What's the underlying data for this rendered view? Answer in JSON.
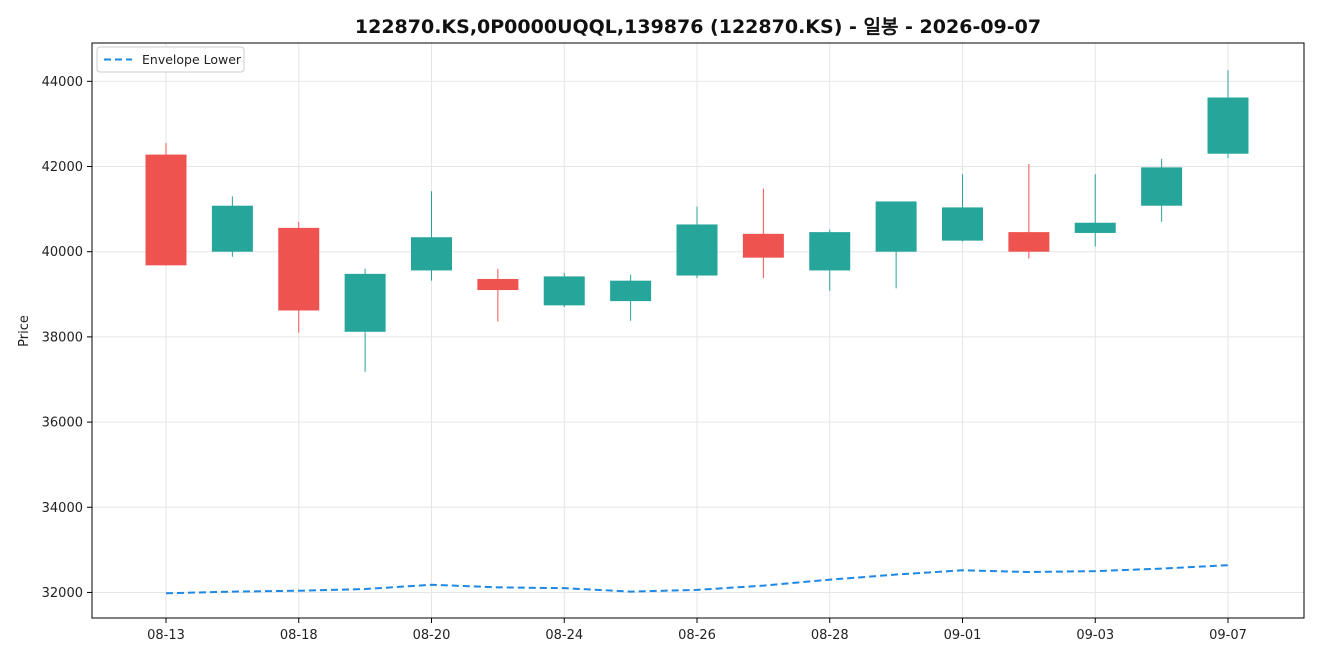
{
  "chart_data": {
    "type": "candlestick",
    "title": "122870.KS,0P0000UQQL,139876 (122870.KS) - 일봉 - 2026-09-07",
    "ylabel": "Price",
    "xlabel": "",
    "ylim": [
      31400,
      44900
    ],
    "yticks": [
      32000,
      34000,
      36000,
      38000,
      40000,
      42000,
      44000
    ],
    "xtick_labels": [
      "08-13",
      "08-18",
      "08-20",
      "08-24",
      "08-26",
      "08-28",
      "09-01",
      "09-03",
      "09-07"
    ],
    "xtick_positions": [
      0,
      2,
      4,
      6,
      8,
      10,
      12,
      14,
      16
    ],
    "grid": true,
    "legend": {
      "position": "top-left",
      "entries": [
        "Envelope Lower"
      ]
    },
    "colors": {
      "up": "#26a69a",
      "down": "#ef5350",
      "envelope": "#1e88e5"
    },
    "candles": [
      {
        "open": 42280,
        "high": 42550,
        "low": 39680,
        "close": 39680
      },
      {
        "open": 40000,
        "high": 41300,
        "low": 39880,
        "close": 41080
      },
      {
        "open": 40560,
        "high": 40700,
        "low": 38100,
        "close": 38620
      },
      {
        "open": 38120,
        "high": 39600,
        "low": 37180,
        "close": 39480
      },
      {
        "open": 39560,
        "high": 41420,
        "low": 39320,
        "close": 40340
      },
      {
        "open": 39360,
        "high": 39600,
        "low": 38360,
        "close": 39100
      },
      {
        "open": 38740,
        "high": 39500,
        "low": 38700,
        "close": 39420
      },
      {
        "open": 38840,
        "high": 39460,
        "low": 38380,
        "close": 39320
      },
      {
        "open": 39440,
        "high": 41060,
        "low": 39380,
        "close": 40640
      },
      {
        "open": 40420,
        "high": 41480,
        "low": 39380,
        "close": 39860
      },
      {
        "open": 39560,
        "high": 40520,
        "low": 39080,
        "close": 40460
      },
      {
        "open": 40000,
        "high": 41180,
        "low": 39140,
        "close": 41180
      },
      {
        "open": 40260,
        "high": 41820,
        "low": 40240,
        "close": 41040
      },
      {
        "open": 40460,
        "high": 42060,
        "low": 39840,
        "close": 40000
      },
      {
        "open": 40440,
        "high": 41820,
        "low": 40120,
        "close": 40680
      },
      {
        "open": 41080,
        "high": 42180,
        "low": 40700,
        "close": 41980
      },
      {
        "open": 42300,
        "high": 44260,
        "low": 42200,
        "close": 43620
      }
    ],
    "series": [
      {
        "name": "Envelope Lower",
        "style": "dashed",
        "values": [
          31980,
          32020,
          32040,
          32080,
          32180,
          32120,
          32100,
          32020,
          32060,
          32160,
          32300,
          32420,
          32520,
          32480,
          32500,
          32560,
          32640
        ]
      }
    ]
  }
}
